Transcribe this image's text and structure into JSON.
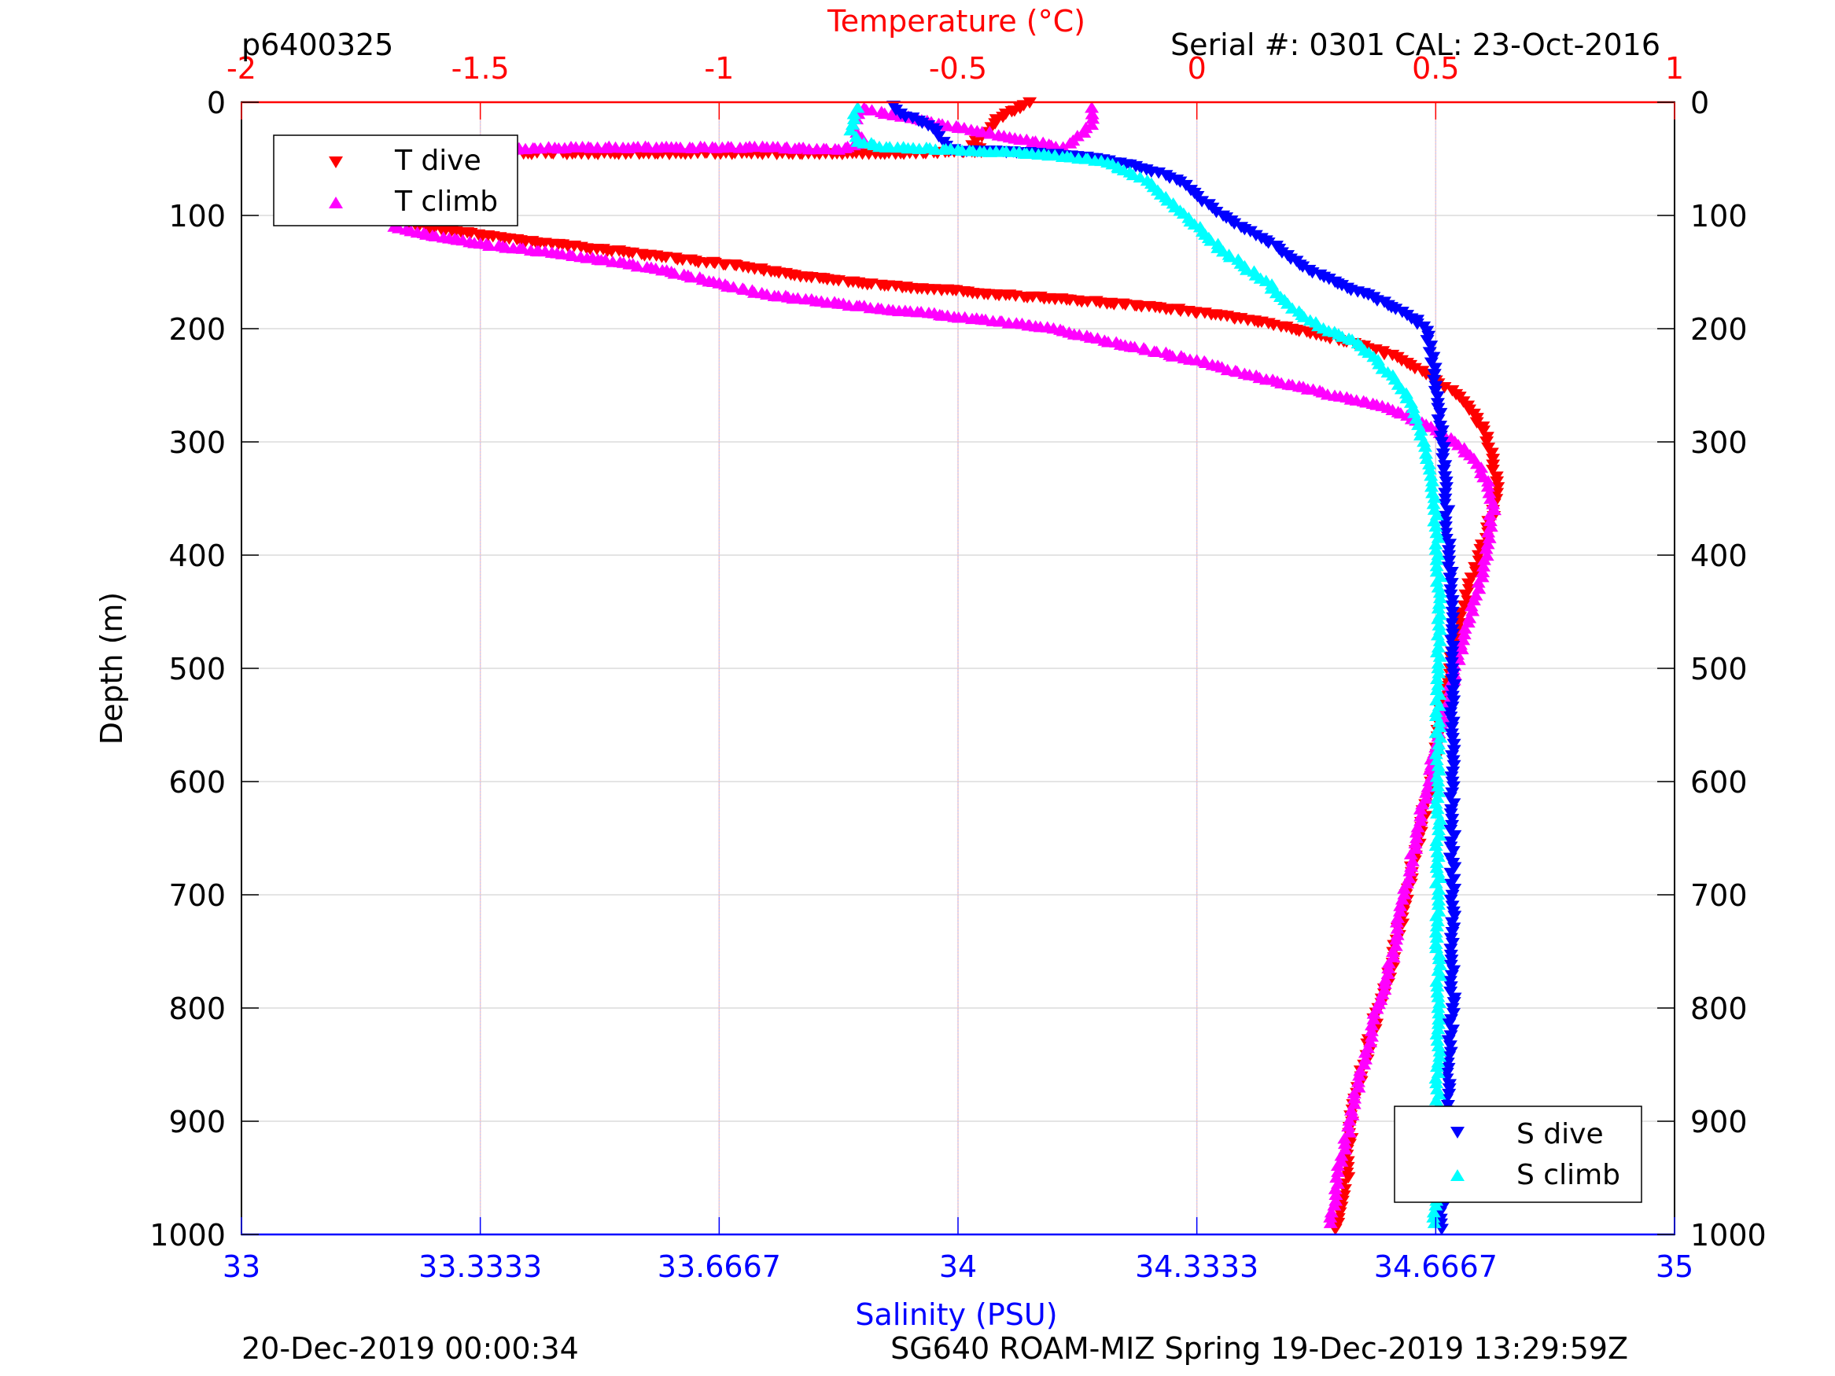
{
  "header": {
    "profile_id": "p6400325",
    "serial_cal": "Serial #: 0301  CAL: 23-Oct-2016"
  },
  "footer": {
    "left": "20-Dec-2019 00:00:34",
    "right": "SG640 ROAM-MIZ Spring 19-Dec-2019 13:29:59Z"
  },
  "colors": {
    "t_dive": "#ff0000",
    "t_climb": "#ff00ff",
    "s_dive": "#0000ff",
    "s_climb": "#00ffff",
    "temperature_axis": "#ff0000",
    "salinity_axis": "#0000ff",
    "axis": "#000000"
  },
  "chart_data": {
    "type": "scatter",
    "ylabel": "Depth (m)",
    "ylim": [
      0,
      1000
    ],
    "y_reversed": true,
    "yticks": [
      0,
      100,
      200,
      300,
      400,
      500,
      600,
      700,
      800,
      900,
      1000
    ],
    "y_tick_labels": [
      "0",
      "100",
      "200",
      "300",
      "400",
      "500",
      "600",
      "700",
      "800",
      "900",
      "1000"
    ],
    "temperature_axis": {
      "label": "Temperature (°C)",
      "range": [
        -2,
        1
      ],
      "ticks": [
        -2,
        -1.5,
        -1,
        -0.5,
        0,
        0.5,
        1
      ],
      "tick_labels": [
        "-2",
        "-1.5",
        "-1",
        "-0.5",
        "0",
        "0.5",
        "1"
      ],
      "position": "top",
      "grid": true
    },
    "salinity_axis": {
      "label": "Salinity (PSU)",
      "range": [
        33,
        35
      ],
      "ticks": [
        33,
        33.3333,
        33.6667,
        34,
        34.3333,
        34.6667,
        35
      ],
      "tick_labels": [
        "33",
        "33.3333",
        "33.6667",
        "34",
        "34.3333",
        "34.6667",
        "35"
      ],
      "position": "bottom",
      "grid": true
    },
    "legend_temperature": {
      "placement": "top-left",
      "entries": [
        "T dive",
        "T climb"
      ]
    },
    "legend_salinity": {
      "placement": "bottom-right",
      "entries": [
        "S dive",
        "S climb"
      ]
    },
    "series": [
      {
        "name": "T dive",
        "axis": "temperature",
        "marker": "triangle-down",
        "points": [
          [
            -0.35,
            0
          ],
          [
            -0.37,
            5
          ],
          [
            -0.4,
            10
          ],
          [
            -0.42,
            15
          ],
          [
            -0.43,
            22
          ],
          [
            -0.45,
            30
          ],
          [
            -0.47,
            38
          ],
          [
            -0.44,
            43
          ],
          [
            -0.62,
            45
          ],
          [
            -0.8,
            45
          ],
          [
            -1.08,
            45
          ],
          [
            -1.4,
            45
          ],
          [
            -1.68,
            50
          ],
          [
            -1.7,
            60
          ],
          [
            -1.68,
            70
          ],
          [
            -1.66,
            80
          ],
          [
            -1.68,
            90
          ],
          [
            -1.67,
            100
          ],
          [
            -1.65,
            108
          ],
          [
            -1.45,
            120
          ],
          [
            -1.35,
            125
          ],
          [
            -1.2,
            132
          ],
          [
            -1.05,
            140
          ],
          [
            -0.95,
            145
          ],
          [
            -0.85,
            152
          ],
          [
            -0.7,
            160
          ],
          [
            -0.55,
            165
          ],
          [
            -0.4,
            170
          ],
          [
            -0.25,
            175
          ],
          [
            -0.1,
            180
          ],
          [
            0.05,
            188
          ],
          [
            0.15,
            195
          ],
          [
            0.25,
            205
          ],
          [
            0.35,
            215
          ],
          [
            0.42,
            225
          ],
          [
            0.48,
            240
          ],
          [
            0.55,
            260
          ],
          [
            0.58,
            275
          ],
          [
            0.6,
            290
          ],
          [
            0.61,
            305
          ],
          [
            0.62,
            320
          ],
          [
            0.63,
            340
          ],
          [
            0.62,
            360
          ],
          [
            0.61,
            380
          ],
          [
            0.59,
            400
          ],
          [
            0.57,
            430
          ],
          [
            0.55,
            460
          ],
          [
            0.53,
            500
          ],
          [
            0.51,
            540
          ],
          [
            0.5,
            570
          ],
          [
            0.49,
            600
          ],
          [
            0.47,
            640
          ],
          [
            0.45,
            680
          ],
          [
            0.43,
            720
          ],
          [
            0.41,
            760
          ],
          [
            0.38,
            800
          ],
          [
            0.35,
            850
          ],
          [
            0.33,
            880
          ],
          [
            0.32,
            920
          ],
          [
            0.31,
            960
          ],
          [
            0.29,
            995
          ]
        ]
      },
      {
        "name": "T climb",
        "axis": "temperature",
        "marker": "triangle-up",
        "points": [
          [
            0.28,
            990
          ],
          [
            0.29,
            960
          ],
          [
            0.31,
            920
          ],
          [
            0.33,
            880
          ],
          [
            0.35,
            850
          ],
          [
            0.37,
            810
          ],
          [
            0.4,
            770
          ],
          [
            0.42,
            730
          ],
          [
            0.44,
            690
          ],
          [
            0.46,
            650
          ],
          [
            0.48,
            610
          ],
          [
            0.5,
            570
          ],
          [
            0.53,
            520
          ],
          [
            0.56,
            470
          ],
          [
            0.58,
            440
          ],
          [
            0.6,
            410
          ],
          [
            0.61,
            380
          ],
          [
            0.62,
            355
          ],
          [
            0.61,
            335
          ],
          [
            0.58,
            315
          ],
          [
            0.54,
            300
          ],
          [
            0.48,
            285
          ],
          [
            0.4,
            270
          ],
          [
            0.3,
            260
          ],
          [
            0.2,
            250
          ],
          [
            0.1,
            240
          ],
          [
            0.0,
            228
          ],
          [
            -0.15,
            215
          ],
          [
            -0.3,
            200
          ],
          [
            -0.45,
            192
          ],
          [
            -0.6,
            185
          ],
          [
            -0.75,
            178
          ],
          [
            -0.9,
            170
          ],
          [
            -1.0,
            160
          ],
          [
            -1.1,
            150
          ],
          [
            -1.2,
            142
          ],
          [
            -1.35,
            133
          ],
          [
            -1.5,
            125
          ],
          [
            -1.6,
            118
          ],
          [
            -1.68,
            110
          ],
          [
            -1.69,
            100
          ],
          [
            -1.7,
            90
          ],
          [
            -1.72,
            75
          ],
          [
            -1.7,
            60
          ],
          [
            -1.65,
            50
          ],
          [
            -1.5,
            42
          ],
          [
            -1.3,
            40
          ],
          [
            -1.1,
            40
          ],
          [
            -0.9,
            40
          ],
          [
            -0.75,
            42
          ],
          [
            -0.7,
            35
          ],
          [
            -0.72,
            20
          ],
          [
            -0.71,
            5
          ],
          [
            -0.28,
            40
          ],
          [
            -0.25,
            30
          ],
          [
            -0.22,
            20
          ],
          [
            -0.22,
            5
          ]
        ]
      },
      {
        "name": "S dive",
        "axis": "salinity",
        "marker": "triangle-down",
        "points": [
          [
            33.91,
            3
          ],
          [
            33.92,
            10
          ],
          [
            33.95,
            18
          ],
          [
            33.97,
            25
          ],
          [
            33.98,
            35
          ],
          [
            33.99,
            42
          ],
          [
            34.1,
            44
          ],
          [
            34.18,
            48
          ],
          [
            34.24,
            55
          ],
          [
            34.28,
            62
          ],
          [
            34.31,
            70
          ],
          [
            34.33,
            80
          ],
          [
            34.35,
            90
          ],
          [
            34.37,
            100
          ],
          [
            34.4,
            112
          ],
          [
            34.43,
            122
          ],
          [
            34.46,
            135
          ],
          [
            34.49,
            148
          ],
          [
            34.53,
            160
          ],
          [
            34.58,
            172
          ],
          [
            34.62,
            185
          ],
          [
            34.65,
            198
          ],
          [
            34.66,
            215
          ],
          [
            34.665,
            240
          ],
          [
            34.67,
            270
          ],
          [
            34.675,
            300
          ],
          [
            34.68,
            350
          ],
          [
            34.685,
            400
          ],
          [
            34.69,
            450
          ],
          [
            34.69,
            500
          ],
          [
            34.69,
            600
          ],
          [
            34.69,
            700
          ],
          [
            34.69,
            800
          ],
          [
            34.68,
            900
          ],
          [
            34.675,
            995
          ]
        ]
      },
      {
        "name": "S climb",
        "axis": "salinity",
        "marker": "triangle-up",
        "points": [
          [
            34.665,
            990
          ],
          [
            34.665,
            950
          ],
          [
            34.67,
            900
          ],
          [
            34.67,
            800
          ],
          [
            34.67,
            700
          ],
          [
            34.67,
            600
          ],
          [
            34.67,
            500
          ],
          [
            34.67,
            400
          ],
          [
            34.665,
            360
          ],
          [
            34.66,
            330
          ],
          [
            34.65,
            300
          ],
          [
            34.635,
            270
          ],
          [
            34.61,
            245
          ],
          [
            34.58,
            225
          ],
          [
            34.55,
            210
          ],
          [
            34.51,
            200
          ],
          [
            34.48,
            188
          ],
          [
            34.45,
            172
          ],
          [
            34.43,
            158
          ],
          [
            34.4,
            145
          ],
          [
            34.37,
            132
          ],
          [
            34.35,
            120
          ],
          [
            34.33,
            108
          ],
          [
            34.31,
            96
          ],
          [
            34.29,
            84
          ],
          [
            34.27,
            72
          ],
          [
            34.24,
            62
          ],
          [
            34.2,
            52
          ],
          [
            34.12,
            46
          ],
          [
            34.0,
            42
          ],
          [
            33.9,
            40
          ],
          [
            33.86,
            35
          ],
          [
            33.85,
            25
          ],
          [
            33.855,
            15
          ],
          [
            33.86,
            5
          ]
        ]
      }
    ]
  }
}
